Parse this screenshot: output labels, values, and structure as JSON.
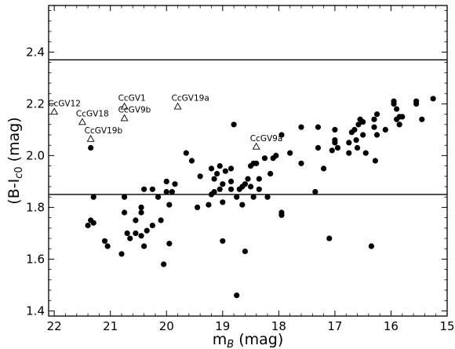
{
  "chart_data": {
    "type": "scatter",
    "xlabel_main": "m",
    "xlabel_sub": "B",
    "xlabel_unit": " (mag)",
    "ylabel_main": "(B-I",
    "ylabel_sub": "c",
    "ylabel_sub2": "0",
    "ylabel_unit": " (mag)",
    "xlim": [
      22.1,
      15.0
    ],
    "ylim": [
      1.38,
      2.58
    ],
    "x_reversed": true,
    "xticks": [
      22,
      21,
      20,
      19,
      18,
      17,
      16,
      15
    ],
    "xtick_labels": [
      "22",
      "21",
      "20",
      "19",
      "18",
      "17",
      "16",
      "15"
    ],
    "yticks": [
      1.4,
      1.6,
      1.8,
      2.0,
      2.2,
      2.4
    ],
    "ytick_labels": [
      "1.4",
      "1.6",
      "1.8",
      "2.0",
      "2.2",
      "2.4"
    ],
    "hlines": [
      2.37,
      1.85
    ],
    "labeled_points": [
      {
        "label": "CcGV12",
        "x": 22.0,
        "y": 2.17,
        "marker": "triangle"
      },
      {
        "label": "CcGV18",
        "x": 21.5,
        "y": 2.13,
        "marker": "triangle"
      },
      {
        "label": "CcGV1",
        "x": 20.75,
        "y": 2.19,
        "marker": "triangle"
      },
      {
        "label": "CcGV9b",
        "x": 20.75,
        "y": 2.145,
        "marker": "triangle"
      },
      {
        "label": "CcGV19a",
        "x": 19.8,
        "y": 2.19,
        "marker": "triangle"
      },
      {
        "label": "CcGV19b",
        "x": 21.35,
        "y": 2.065,
        "marker": "triangle"
      },
      {
        "label": "CcGV9a",
        "x": 18.4,
        "y": 2.035,
        "marker": "triangle"
      }
    ],
    "points": [
      [
        15.25,
        2.22
      ],
      [
        15.55,
        2.21
      ],
      [
        15.55,
        2.2
      ],
      [
        15.95,
        2.21
      ],
      [
        15.95,
        2.2
      ],
      [
        15.9,
        2.18
      ],
      [
        15.85,
        2.15
      ],
      [
        15.8,
        2.15
      ],
      [
        15.9,
        2.14
      ],
      [
        15.85,
        2.12
      ],
      [
        15.45,
        2.14
      ],
      [
        16.25,
        2.16
      ],
      [
        16.3,
        2.14
      ],
      [
        16.1,
        2.1
      ],
      [
        16.3,
        2.11
      ],
      [
        16.25,
        2.08
      ],
      [
        16.28,
        1.98
      ],
      [
        16.55,
        2.14
      ],
      [
        16.58,
        2.12
      ],
      [
        16.5,
        2.13
      ],
      [
        16.65,
        2.1
      ],
      [
        16.7,
        2.09
      ],
      [
        16.5,
        2.08
      ],
      [
        16.62,
        2.06
      ],
      [
        16.75,
        2.05
      ],
      [
        16.6,
        2.03
      ],
      [
        16.75,
        2.01
      ],
      [
        16.45,
        2.01
      ],
      [
        17.0,
        2.1
      ],
      [
        17.0,
        2.06
      ],
      [
        17.0,
        2.05
      ],
      [
        17.05,
        2.02
      ],
      [
        16.95,
        2.03
      ],
      [
        17.3,
        2.11
      ],
      [
        17.3,
        2.03
      ],
      [
        17.2,
        1.95
      ],
      [
        17.35,
        1.86
      ],
      [
        17.6,
        2.11
      ],
      [
        17.6,
        1.97
      ],
      [
        17.8,
        2.01
      ],
      [
        17.95,
        2.08
      ],
      [
        17.95,
        1.78
      ],
      [
        17.95,
        1.77
      ],
      [
        18.05,
        2.0
      ],
      [
        18.1,
        1.99
      ],
      [
        18.15,
        1.93
      ],
      [
        18.2,
        1.84
      ],
      [
        18.25,
        1.99
      ],
      [
        18.35,
        1.91
      ],
      [
        18.4,
        1.97
      ],
      [
        18.45,
        1.97
      ],
      [
        18.5,
        1.96
      ],
      [
        18.55,
        1.91
      ],
      [
        18.35,
        1.87
      ],
      [
        18.45,
        1.84
      ],
      [
        18.5,
        1.88
      ],
      [
        18.6,
        1.89
      ],
      [
        18.65,
        1.88
      ],
      [
        18.7,
        1.87
      ],
      [
        18.75,
        1.84
      ],
      [
        18.65,
        1.81
      ],
      [
        18.6,
        1.63
      ],
      [
        18.8,
        2.12
      ],
      [
        18.85,
        1.9
      ],
      [
        18.85,
        1.87
      ],
      [
        18.85,
        1.95
      ],
      [
        18.95,
        1.94
      ],
      [
        19.05,
        1.96
      ],
      [
        19.1,
        1.93
      ],
      [
        19.05,
        1.87
      ],
      [
        19.0,
        1.89
      ],
      [
        19.0,
        1.82
      ],
      [
        19.0,
        1.67
      ],
      [
        19.2,
        1.95
      ],
      [
        19.15,
        1.91
      ],
      [
        19.15,
        1.86
      ],
      [
        19.2,
        1.85
      ],
      [
        19.25,
        1.81
      ],
      [
        19.4,
        1.92
      ],
      [
        19.45,
        1.8
      ],
      [
        19.55,
        1.98
      ],
      [
        19.65,
        2.01
      ],
      [
        19.85,
        1.89
      ],
      [
        19.9,
        1.86
      ],
      [
        19.95,
        1.81
      ],
      [
        19.95,
        1.66
      ],
      [
        20.0,
        1.86
      ],
      [
        20.0,
        1.9
      ],
      [
        20.05,
        1.58
      ],
      [
        20.1,
        1.75
      ],
      [
        20.15,
        1.84
      ],
      [
        20.25,
        1.87
      ],
      [
        20.4,
        1.87
      ],
      [
        20.25,
        1.73
      ],
      [
        20.35,
        1.71
      ],
      [
        20.45,
        1.69
      ],
      [
        20.4,
        1.65
      ],
      [
        20.45,
        1.8
      ],
      [
        20.45,
        1.78
      ],
      [
        20.55,
        1.7
      ],
      [
        20.65,
        1.68
      ],
      [
        20.7,
        1.7
      ],
      [
        20.75,
        1.78
      ],
      [
        20.75,
        1.84
      ],
      [
        20.55,
        1.75
      ],
      [
        20.8,
        1.62
      ],
      [
        21.05,
        1.65
      ],
      [
        21.1,
        1.67
      ],
      [
        21.3,
        1.74
      ],
      [
        21.35,
        1.75
      ],
      [
        21.4,
        1.73
      ],
      [
        21.3,
        1.84
      ],
      [
        21.35,
        2.03
      ],
      [
        17.1,
        1.68
      ],
      [
        16.35,
        1.65
      ],
      [
        18.75,
        1.46
      ]
    ]
  }
}
